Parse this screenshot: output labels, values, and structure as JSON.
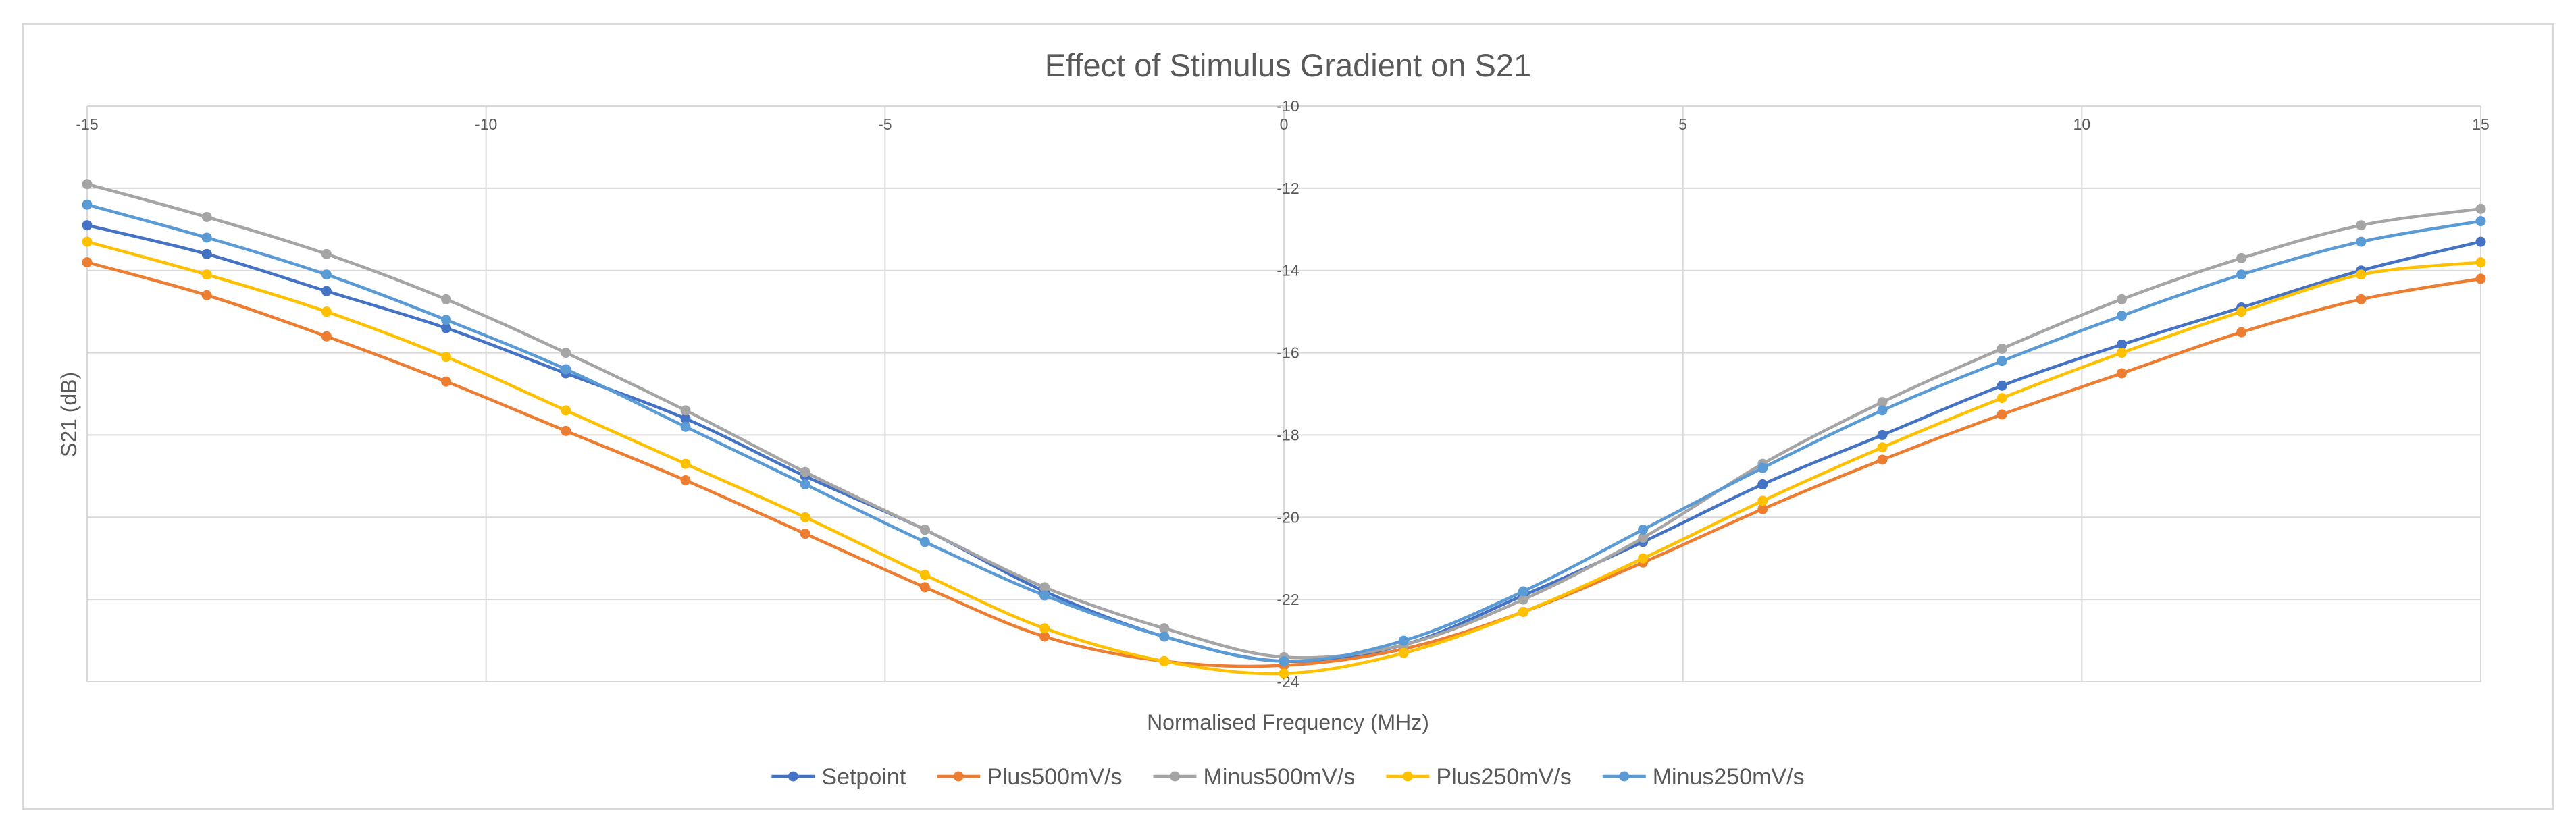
{
  "chart_data": {
    "type": "line",
    "title": "Effect of Stimulus Gradient on S21",
    "xlabel": "Normalised Frequency (MHz)",
    "ylabel": "S21 (dB)",
    "xlim": [
      -15,
      15
    ],
    "ylim": [
      -24,
      -10
    ],
    "xticks": [
      -15,
      -10,
      -5,
      0,
      5,
      10,
      15
    ],
    "yticks": [
      -10,
      -12,
      -14,
      -16,
      -18,
      -20,
      -22,
      -24
    ],
    "xtick_labels": [
      "-15",
      "-10",
      "-5",
      "0",
      "5",
      "10",
      "15"
    ],
    "ytick_labels": [
      "-10",
      "-12",
      "-14",
      "-16",
      "-18",
      "-20",
      "-22",
      "-24"
    ],
    "grid": true,
    "legend_position": "bottom",
    "series": [
      {
        "name": "Setpoint",
        "color": "#4472c4",
        "x": [
          -15,
          -13.5,
          -12,
          -10.5,
          -9,
          -7.5,
          -6,
          -4.5,
          -3,
          -1.5,
          0,
          1.5,
          3,
          4.5,
          6,
          7.5,
          9,
          10.5,
          12,
          13.5,
          15
        ],
        "y": [
          -12.9,
          -13.6,
          -14.5,
          -15.4,
          -16.5,
          -17.6,
          -19.0,
          -20.3,
          -21.8,
          -22.9,
          -23.5,
          -23.1,
          -21.9,
          -20.6,
          -19.2,
          -18.0,
          -16.8,
          -15.8,
          -14.9,
          -14.0,
          -13.3
        ]
      },
      {
        "name": "Plus500mV/s",
        "color": "#ed7d31",
        "x": [
          -15,
          -13.5,
          -12,
          -10.5,
          -9,
          -7.5,
          -6,
          -4.5,
          -3,
          -1.5,
          0,
          1.5,
          3,
          4.5,
          6,
          7.5,
          9,
          10.5,
          12,
          13.5,
          15
        ],
        "y": [
          -13.8,
          -14.6,
          -15.6,
          -16.7,
          -17.9,
          -19.1,
          -20.4,
          -21.7,
          -22.9,
          -23.5,
          -23.6,
          -23.2,
          -22.3,
          -21.1,
          -19.8,
          -18.6,
          -17.5,
          -16.5,
          -15.5,
          -14.7,
          -14.2
        ]
      },
      {
        "name": "Minus500mV/s",
        "color": "#a5a5a5",
        "x": [
          -15,
          -13.5,
          -12,
          -10.5,
          -9,
          -7.5,
          -6,
          -4.5,
          -3,
          -1.5,
          0,
          1.5,
          3,
          4.5,
          6,
          7.5,
          9,
          10.5,
          12,
          13.5,
          15
        ],
        "y": [
          -11.9,
          -12.7,
          -13.6,
          -14.7,
          -16.0,
          -17.4,
          -18.9,
          -20.3,
          -21.7,
          -22.7,
          -23.4,
          -23.1,
          -22.0,
          -20.5,
          -18.7,
          -17.2,
          -15.9,
          -14.7,
          -13.7,
          -12.9,
          -12.5
        ]
      },
      {
        "name": "Plus250mV/s",
        "color": "#ffc000",
        "x": [
          -15,
          -13.5,
          -12,
          -10.5,
          -9,
          -7.5,
          -6,
          -4.5,
          -3,
          -1.5,
          0,
          1.5,
          3,
          4.5,
          6,
          7.5,
          9,
          10.5,
          12,
          13.5,
          15
        ],
        "y": [
          -13.3,
          -14.1,
          -15.0,
          -16.1,
          -17.4,
          -18.7,
          -20.0,
          -21.4,
          -22.7,
          -23.5,
          -23.8,
          -23.3,
          -22.3,
          -21.0,
          -19.6,
          -18.3,
          -17.1,
          -16.0,
          -15.0,
          -14.1,
          -13.8
        ]
      },
      {
        "name": "Minus250mV/s",
        "color": "#5b9bd5",
        "x": [
          -15,
          -13.5,
          -12,
          -10.5,
          -9,
          -7.5,
          -6,
          -4.5,
          -3,
          -1.5,
          0,
          1.5,
          3,
          4.5,
          6,
          7.5,
          9,
          10.5,
          12,
          13.5,
          15
        ],
        "y": [
          -12.4,
          -13.2,
          -14.1,
          -15.2,
          -16.4,
          -17.8,
          -19.2,
          -20.6,
          -21.9,
          -22.9,
          -23.5,
          -23.0,
          -21.8,
          -20.3,
          -18.8,
          -17.4,
          -16.2,
          -15.1,
          -14.1,
          -13.3,
          -12.8
        ]
      }
    ]
  }
}
